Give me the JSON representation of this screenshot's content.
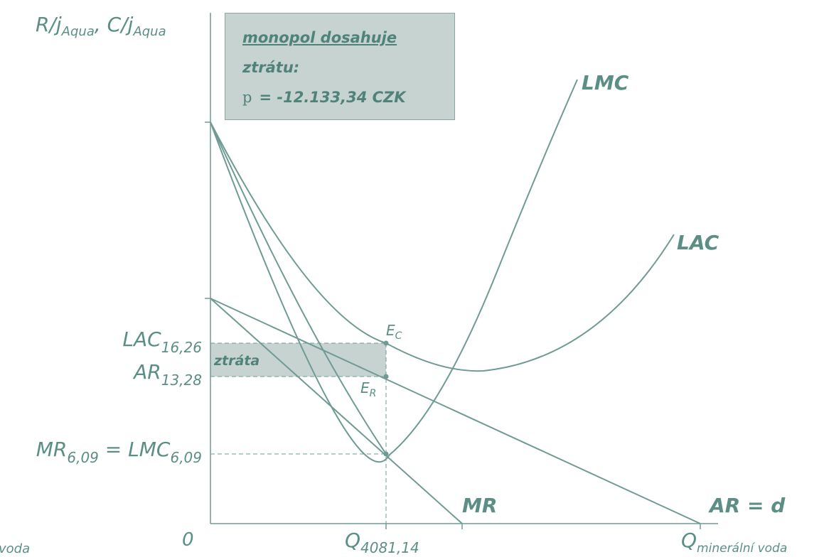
{
  "y_axis_label": {
    "r": "R/j",
    "r_sub": "Aqua",
    "sep": ", ",
    "c": "C/j",
    "c_sub": "Aqua"
  },
  "x_axis_label": {
    "q": "Q",
    "q_sub": "minerální voda"
  },
  "left_cut_label": "voda",
  "origin_label": "0",
  "info_box": {
    "line1": "monopol dosahuje",
    "line2": "ztrátu:",
    "profit_symbol": "p",
    "profit_value": "= -12.133,34 CZK"
  },
  "curve_labels": {
    "lmc": "LMC",
    "lac": "LAC",
    "mr": "MR",
    "ar": "AR = d"
  },
  "points": {
    "ec": "E",
    "ec_sub": "C",
    "er": "E",
    "er_sub": "R"
  },
  "loss_label": "ztráta",
  "y_ticks": {
    "lac": {
      "main": "LAC",
      "sub": "16,26"
    },
    "ar": {
      "main": "AR",
      "sub": "13,28"
    },
    "mr_lmc": {
      "main1": "MR",
      "sub1": "6,09",
      "eq": " = ",
      "main2": "LMC",
      "sub2": "6,09"
    }
  },
  "x_ticks": {
    "q": {
      "main": "Q",
      "sub": "4081,14"
    }
  },
  "colors": {
    "curve": "#6f9b94",
    "text": "#5b8f86",
    "loss_fill": "#c6d3d1",
    "box_border": "#8aa7a2"
  }
}
